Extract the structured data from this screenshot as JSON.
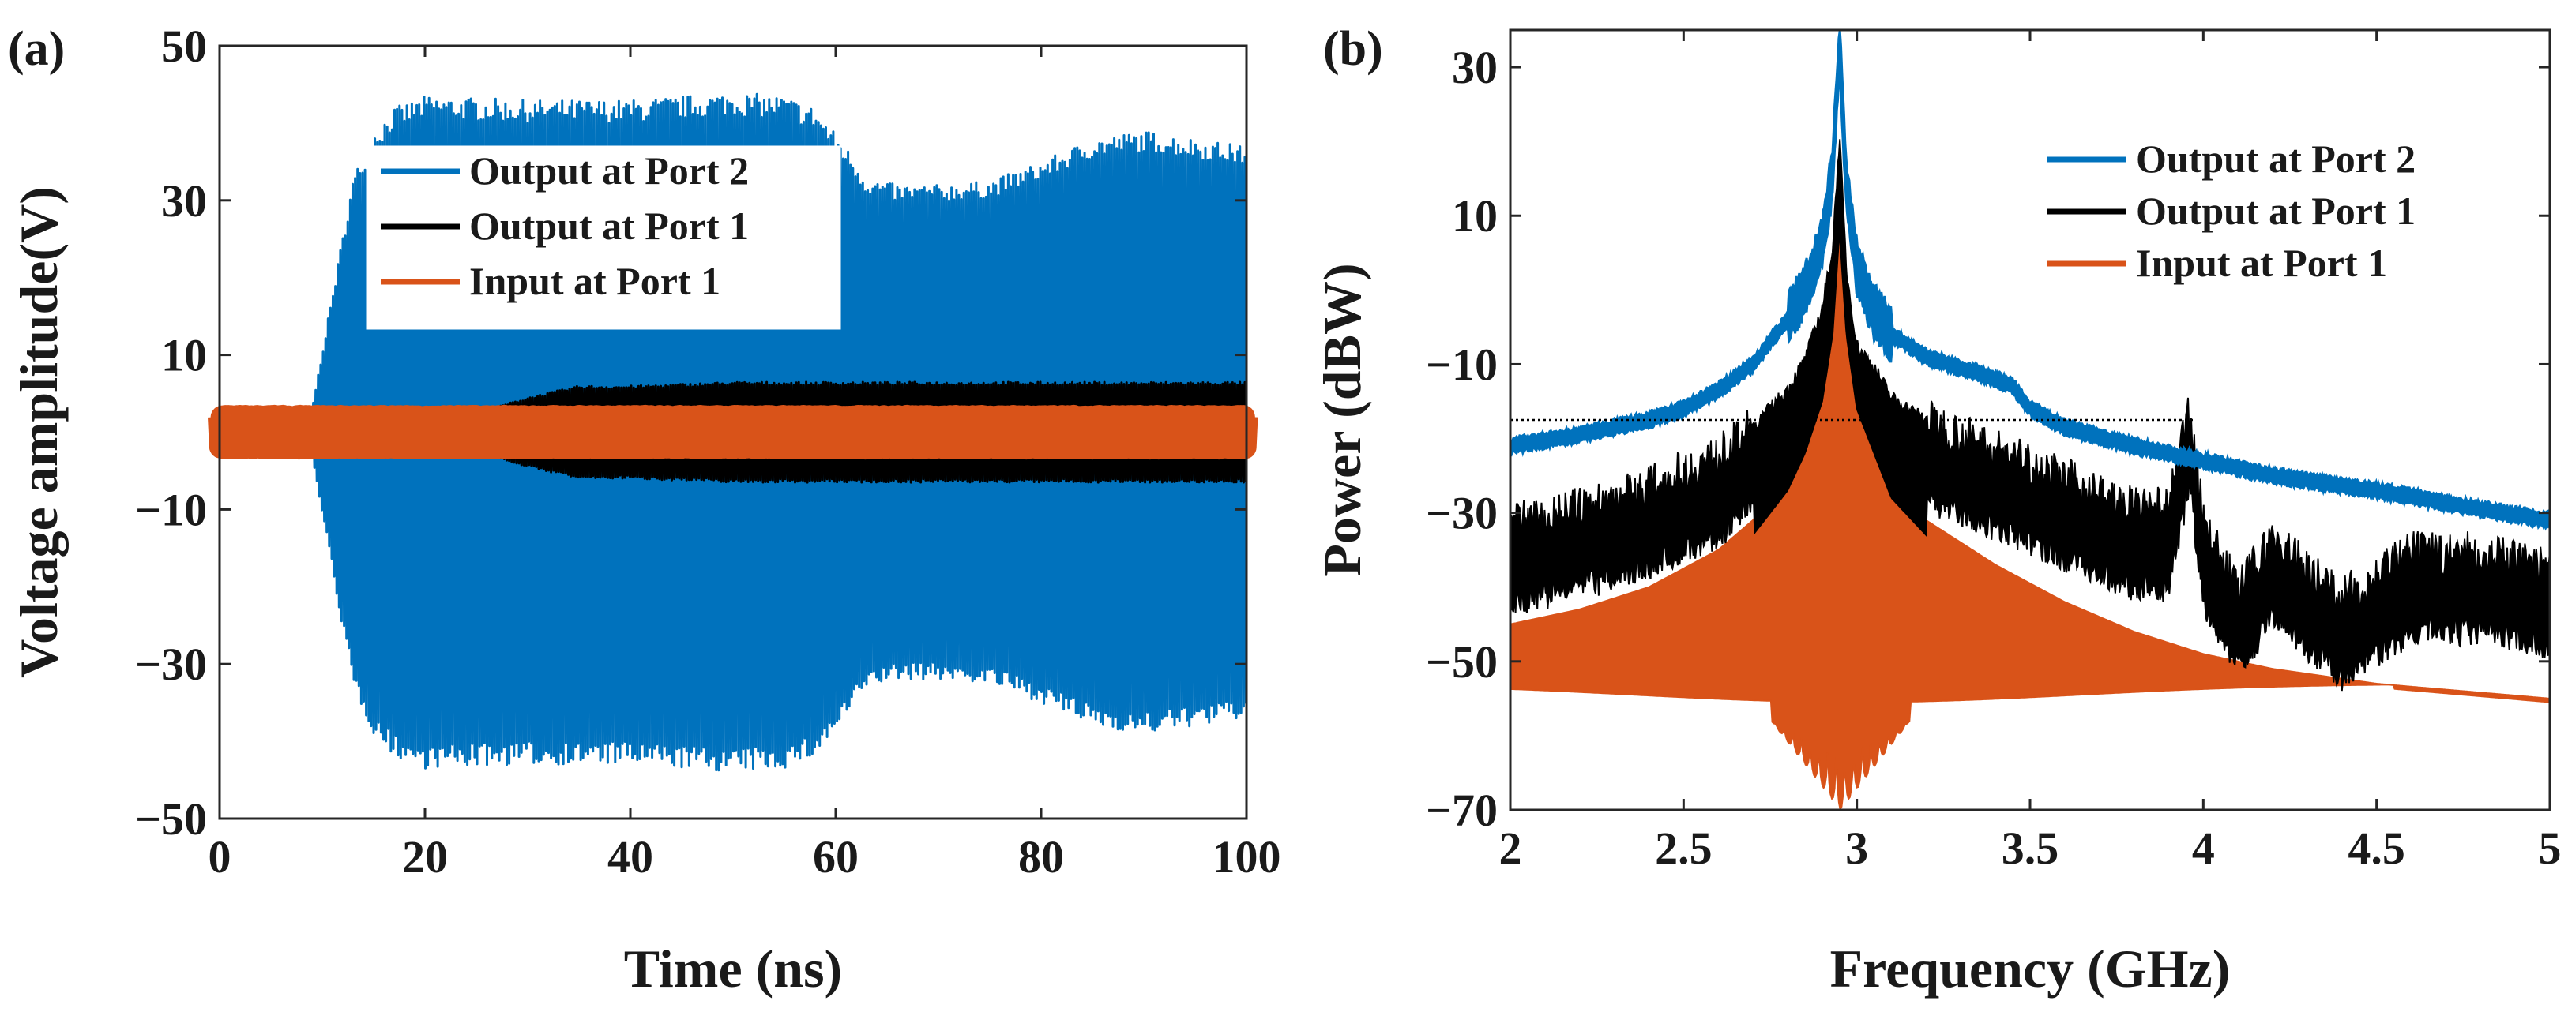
{
  "colors": {
    "output_port2": "#0072BD",
    "output_port1": "#000000",
    "input_port1": "#D95319",
    "axis": "#262626"
  },
  "chart_data": [
    {
      "panel_label": "(a)",
      "type": "line",
      "xlabel": "Time (ns)",
      "ylabel": "Voltage amplitude(V)",
      "xlim": [
        0,
        100
      ],
      "ylim": [
        -50,
        50
      ],
      "xticks": [
        0,
        20,
        40,
        60,
        80,
        100
      ],
      "yticks": [
        -50,
        -30,
        -10,
        10,
        30,
        50
      ],
      "ytick_labels": [
        "−50",
        "−30",
        "−10",
        "10",
        "30",
        "50"
      ],
      "legend_position": "center-left",
      "description": "Oscillating voltage signals; values below are envelope amplitudes (V)",
      "series": [
        {
          "name": "Output at Port 2",
          "color": "#0072BD",
          "envelope": [
            [
              0,
              0
            ],
            [
              7,
              0.5
            ],
            [
              9,
              3
            ],
            [
              11,
              18
            ],
            [
              13,
              33
            ],
            [
              15,
              39
            ],
            [
              17,
              42
            ],
            [
              20,
              43.5
            ],
            [
              30,
              43
            ],
            [
              40,
              43
            ],
            [
              45,
              43.5
            ],
            [
              50,
              44
            ],
            [
              55,
              43.5
            ],
            [
              58,
              42
            ],
            [
              61,
              37
            ],
            [
              63,
              33
            ],
            [
              66,
              32
            ],
            [
              70,
              32
            ],
            [
              75,
              32.5
            ],
            [
              80,
              35
            ],
            [
              85,
              38
            ],
            [
              90,
              39
            ],
            [
              95,
              38
            ],
            [
              100,
              37
            ]
          ]
        },
        {
          "name": "Output at Port 1",
          "color": "#000000",
          "envelope": [
            [
              0,
              1.5
            ],
            [
              20,
              1.5
            ],
            [
              25,
              2.5
            ],
            [
              30,
              4.5
            ],
            [
              35,
              6
            ],
            [
              40,
              6
            ],
            [
              50,
              6.5
            ],
            [
              60,
              6.5
            ],
            [
              70,
              6.5
            ],
            [
              80,
              6.5
            ],
            [
              90,
              6.5
            ],
            [
              100,
              6.5
            ]
          ]
        },
        {
          "name": "Input at Port 1",
          "color": "#D95319",
          "envelope": [
            [
              0,
              2
            ],
            [
              100,
              2
            ]
          ]
        }
      ]
    },
    {
      "panel_label": "(b)",
      "type": "line",
      "xlabel": "Frequency (GHz)",
      "ylabel": "Power (dBW)",
      "xlim": [
        2,
        5
      ],
      "ylim": [
        -70,
        35
      ],
      "xticks": [
        2,
        2.5,
        3,
        3.5,
        4,
        4.5,
        5
      ],
      "xtick_labels": [
        "2",
        "2.5",
        "3",
        "3.5",
        "4",
        "4.5",
        "5"
      ],
      "yticks": [
        -70,
        -50,
        -30,
        -10,
        10,
        30
      ],
      "ytick_labels": [
        "−70",
        "−50",
        "−30",
        "−10",
        "10",
        "30"
      ],
      "legend_position": "top-right",
      "reference_line": {
        "y": -17.5,
        "x_start": 2,
        "x_end": 3.97
      },
      "series": [
        {
          "name": "Output at Port 2",
          "color": "#0072BD",
          "x": [
            2.0,
            2.2,
            2.4,
            2.5,
            2.6,
            2.7,
            2.8,
            2.85,
            2.9,
            2.93,
            2.95,
            2.97,
            3.0,
            3.05,
            3.1,
            3.2,
            3.3,
            3.4,
            3.45,
            3.5,
            3.6,
            3.8,
            4.0,
            4.2,
            4.5,
            4.8,
            5.0
          ],
          "y": [
            -21,
            -19.5,
            -17.5,
            -16,
            -13.5,
            -10,
            -4,
            0,
            6,
            16,
            33,
            14,
            3,
            -3,
            -6,
            -9,
            -10.5,
            -12,
            -13,
            -16,
            -18.5,
            -21,
            -23,
            -25,
            -27,
            -29.5,
            -31
          ]
        },
        {
          "name": "Output at Port 1",
          "color": "#000000",
          "x": [
            2.0,
            2.2,
            2.4,
            2.6,
            2.7,
            2.8,
            2.85,
            2.9,
            2.93,
            2.95,
            2.97,
            3.0,
            3.05,
            3.1,
            3.2,
            3.3,
            3.4,
            3.6,
            3.8,
            3.9,
            3.96,
            4.0,
            4.1,
            4.2,
            4.4,
            4.6,
            4.8,
            5.0
          ],
          "y": [
            -34,
            -32,
            -29,
            -25,
            -21,
            -16,
            -12,
            -5,
            3,
            18,
            0,
            -10,
            -13,
            -17,
            -20,
            -22,
            -24,
            -28,
            -32,
            -32,
            -18,
            -34,
            -43,
            -36,
            -44,
            -38,
            -38,
            -40
          ]
        },
        {
          "name": "Input at Port 1",
          "color": "#D95319",
          "x": [
            2.0,
            2.2,
            2.4,
            2.6,
            2.7,
            2.8,
            2.85,
            2.9,
            2.93,
            2.95,
            2.97,
            3.0,
            3.05,
            3.1,
            3.2,
            3.4,
            3.6,
            3.8,
            4.0,
            4.2,
            4.5,
            5.0
          ],
          "y": [
            -45,
            -43,
            -40,
            -35,
            -31,
            -25,
            -20,
            -13,
            -4,
            10,
            -4,
            -14,
            -20,
            -26,
            -31,
            -37,
            -42,
            -46,
            -49,
            -51,
            -53,
            -55
          ]
        }
      ]
    }
  ]
}
